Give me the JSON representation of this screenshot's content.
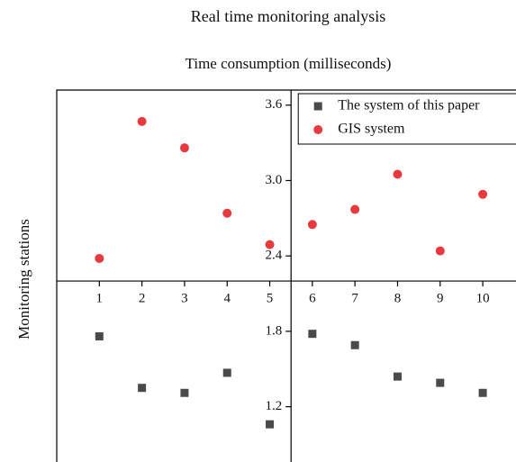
{
  "chart_data": {
    "type": "scatter",
    "title": "Real time monitoring analysis",
    "subtitle": "Time consumption (milliseconds)",
    "y_label": "Monitoring stations",
    "x": [
      1,
      2,
      3,
      4,
      5,
      6,
      7,
      8,
      9,
      10
    ],
    "series": [
      {
        "name": "The system of this paper",
        "color": "#4a4a4a",
        "marker": "square",
        "values": [
          1.76,
          1.35,
          1.31,
          1.47,
          1.06,
          1.78,
          1.69,
          1.44,
          1.39,
          1.31
        ]
      },
      {
        "name": "GIS system",
        "color": "#e8393f",
        "marker": "circle",
        "values": [
          2.38,
          3.47,
          3.26,
          2.74,
          2.49,
          2.65,
          2.77,
          3.05,
          2.44,
          2.89
        ]
      }
    ],
    "xlim": [
      0,
      10.78
    ],
    "ylim": [
      0.76,
      3.72
    ],
    "xticks": [
      1,
      2,
      3,
      4,
      5,
      6,
      7,
      8,
      9,
      10
    ],
    "yticks": [
      1.2,
      1.8,
      2.4,
      {
        "value": 3.0,
        "label": "3.0"
      },
      3.6
    ],
    "x_axis_crosses_y": 2.2,
    "y_axis_crosses_x": 5.5,
    "legend": "top-right"
  }
}
